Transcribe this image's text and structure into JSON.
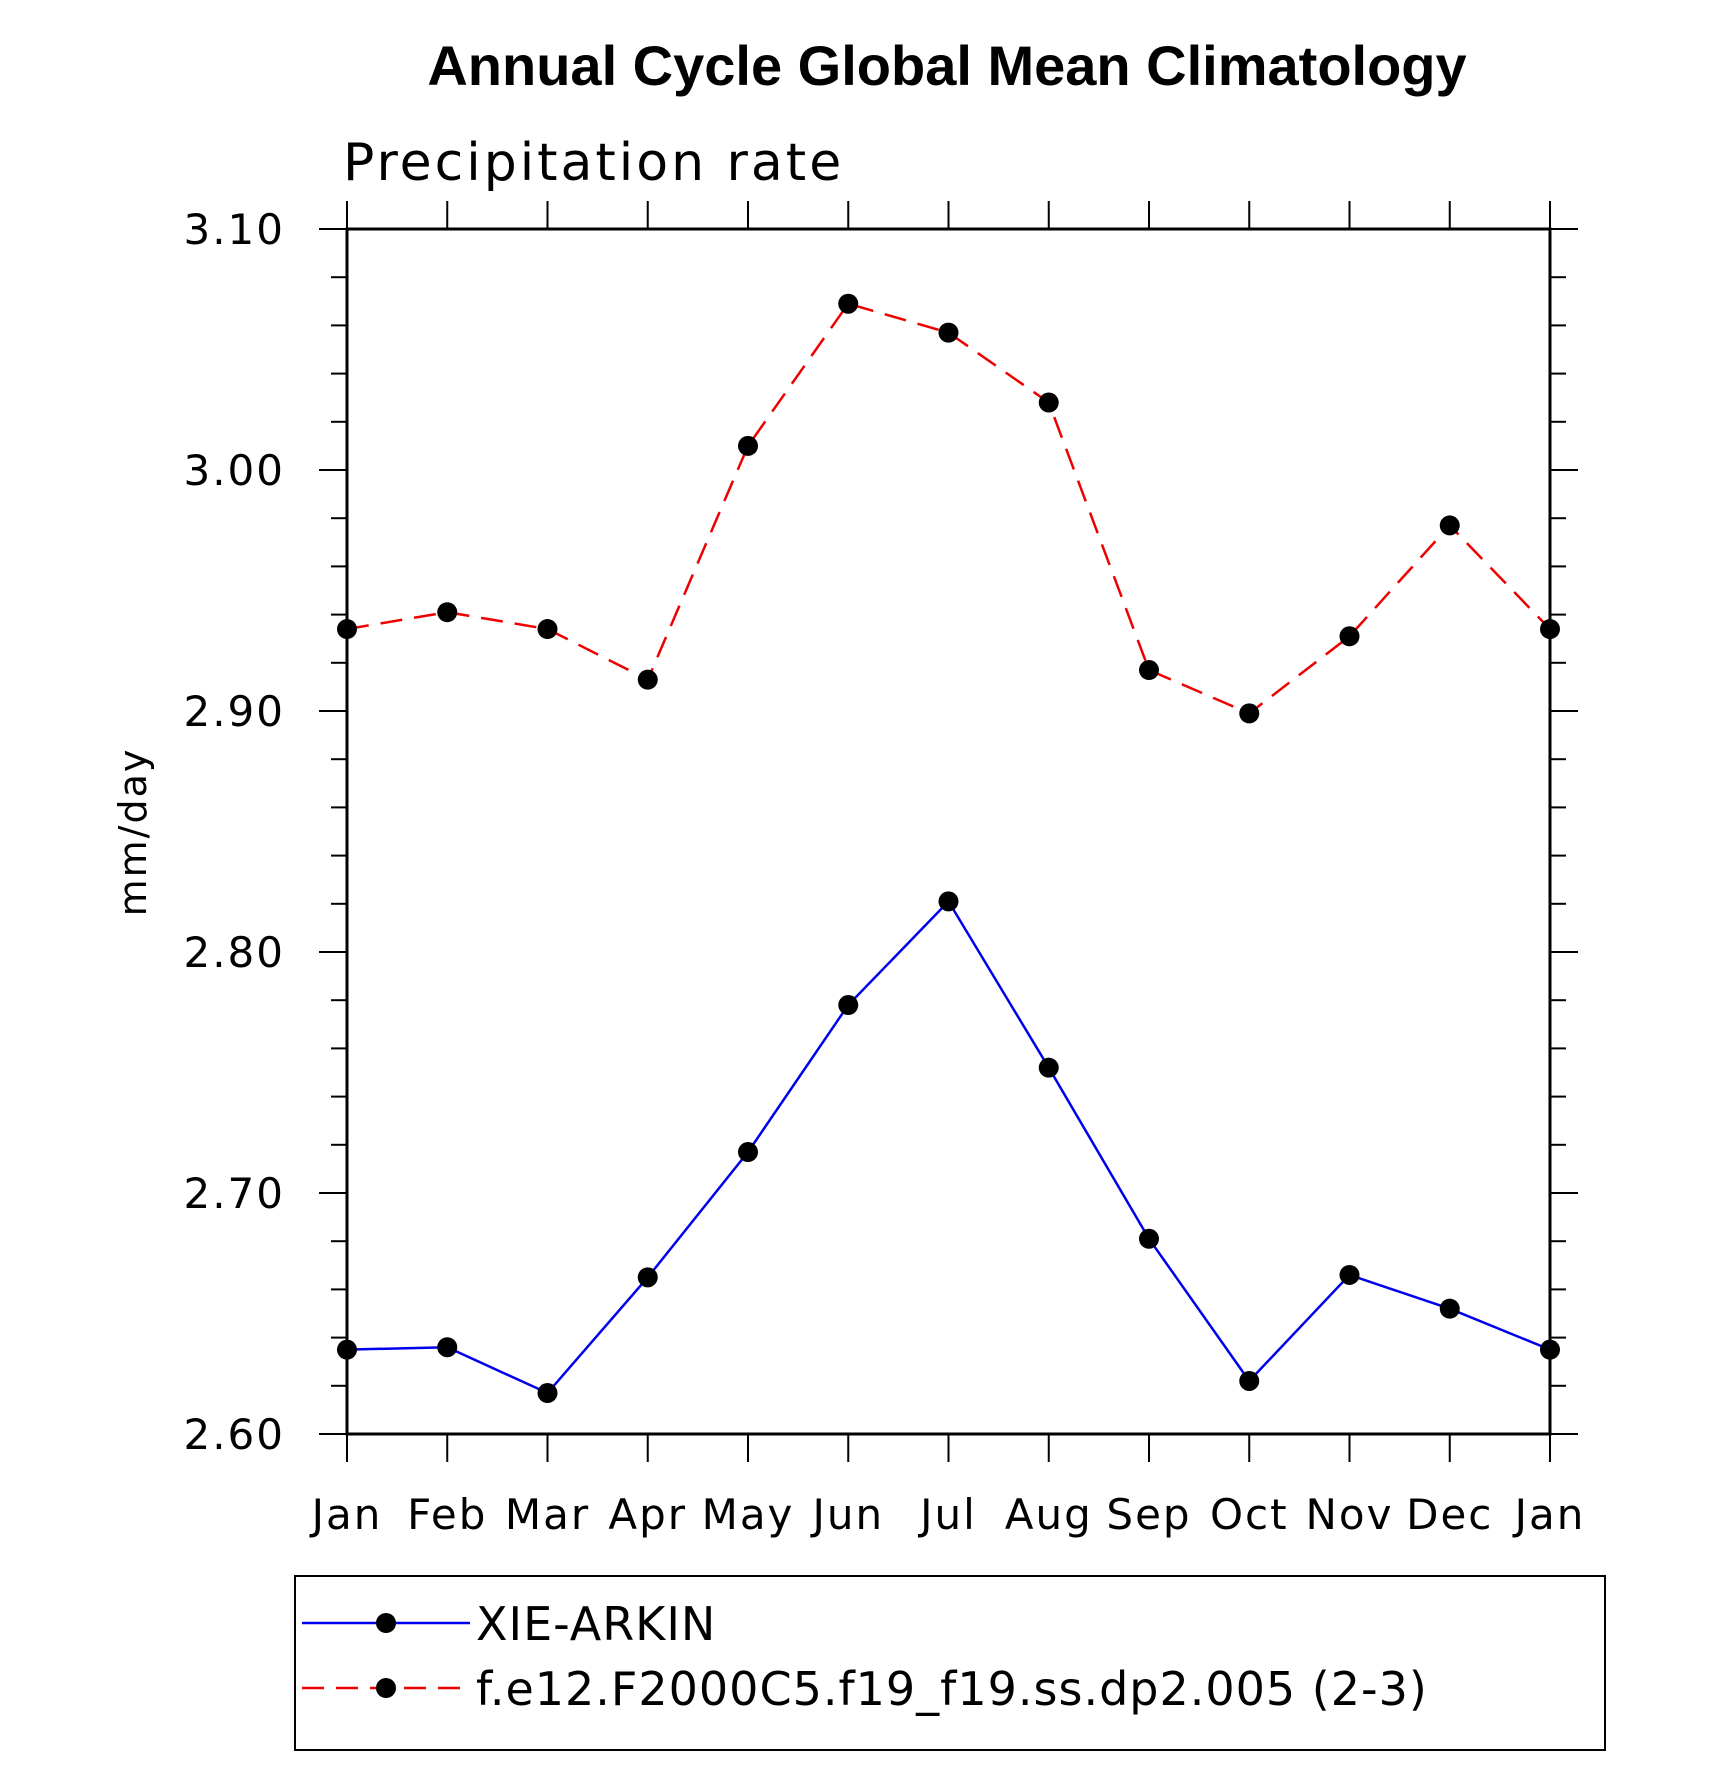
{
  "chart_data": {
    "type": "line",
    "title": "Annual Cycle Global Mean Climatology",
    "subtitle": "Precipitation rate",
    "xlabel": "",
    "ylabel": "mm/day",
    "categories": [
      "Jan",
      "Feb",
      "Mar",
      "Apr",
      "May",
      "Jun",
      "Jul",
      "Aug",
      "Sep",
      "Oct",
      "Nov",
      "Dec",
      "Jan"
    ],
    "ylim": [
      2.6,
      3.1
    ],
    "yticks": [
      "2.60",
      "2.70",
      "2.80",
      "2.90",
      "3.00",
      "3.10"
    ],
    "yticks_values": [
      2.6,
      2.7,
      2.8,
      2.9,
      3.0,
      3.1
    ],
    "minor_step": 0.02,
    "grid": false,
    "legend_position": "bottom",
    "series": [
      {
        "name": "XIE-ARKIN",
        "color": "#0000ee",
        "line_style": "solid",
        "marker": "filled-circle",
        "values": [
          2.635,
          2.636,
          2.617,
          2.665,
          2.717,
          2.778,
          2.821,
          2.752,
          2.681,
          2.622,
          2.666,
          2.652,
          2.635
        ]
      },
      {
        "name": "f.e12.F2000C5.f19_f19.ss.dp2.005 (2-3)",
        "color": "#ee0000",
        "line_style": "dashed",
        "marker": "filled-circle",
        "values": [
          2.934,
          2.941,
          2.934,
          2.913,
          3.01,
          3.069,
          3.057,
          3.028,
          2.917,
          2.899,
          2.931,
          2.977,
          2.934
        ]
      }
    ]
  }
}
